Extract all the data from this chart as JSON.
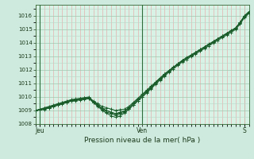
{
  "title": "Pression niveau de la mer( hPa )",
  "bg_color": "#ceeade",
  "plot_bg_color": "#d8f2e6",
  "grid_major_color": "#a0c8b0",
  "grid_minor_x_color": "#e8a0a0",
  "grid_minor_y_color": "#b8d8c8",
  "line_color": "#1a5c2a",
  "ylim": [
    1008.0,
    1016.8
  ],
  "yticks": [
    1008,
    1009,
    1010,
    1011,
    1012,
    1013,
    1014,
    1015,
    1016
  ],
  "day_labels": [
    "Jeu",
    "Ven",
    "S"
  ],
  "day_positions": [
    0.02,
    0.5,
    0.98
  ],
  "vline_x": [
    0.02,
    0.5
  ],
  "n_points": 49,
  "lines": [
    [
      1009.0,
      1009.1,
      1009.2,
      1009.3,
      1009.4,
      1009.5,
      1009.6,
      1009.7,
      1009.8,
      1009.85,
      1009.9,
      1009.95,
      1010.0,
      1009.7,
      1009.5,
      1009.3,
      1009.2,
      1009.1,
      1009.0,
      1009.05,
      1009.1,
      1009.3,
      1009.6,
      1009.9,
      1010.2,
      1010.5,
      1010.8,
      1011.1,
      1011.4,
      1011.7,
      1011.95,
      1012.2,
      1012.45,
      1012.7,
      1012.9,
      1013.1,
      1013.3,
      1013.5,
      1013.7,
      1013.9,
      1014.1,
      1014.3,
      1014.5,
      1014.7,
      1014.9,
      1015.1,
      1015.5,
      1016.0,
      1016.3
    ],
    [
      1009.0,
      1009.05,
      1009.1,
      1009.2,
      1009.3,
      1009.4,
      1009.5,
      1009.6,
      1009.7,
      1009.75,
      1009.8,
      1009.85,
      1009.9,
      1009.6,
      1009.3,
      1009.0,
      1008.8,
      1008.6,
      1008.5,
      1008.6,
      1008.8,
      1009.1,
      1009.4,
      1009.7,
      1010.0,
      1010.35,
      1010.65,
      1011.0,
      1011.3,
      1011.6,
      1011.9,
      1012.15,
      1012.4,
      1012.65,
      1012.85,
      1013.05,
      1013.25,
      1013.45,
      1013.65,
      1013.85,
      1014.05,
      1014.25,
      1014.45,
      1014.65,
      1014.85,
      1015.05,
      1015.45,
      1015.9,
      1016.2
    ],
    [
      1009.0,
      1009.07,
      1009.15,
      1009.25,
      1009.35,
      1009.45,
      1009.55,
      1009.65,
      1009.75,
      1009.8,
      1009.85,
      1009.9,
      1009.95,
      1009.65,
      1009.4,
      1009.15,
      1009.0,
      1008.85,
      1008.75,
      1008.85,
      1008.95,
      1009.2,
      1009.5,
      1009.8,
      1010.1,
      1010.42,
      1010.72,
      1011.05,
      1011.35,
      1011.65,
      1011.92,
      1012.17,
      1012.42,
      1012.67,
      1012.87,
      1013.07,
      1013.27,
      1013.47,
      1013.67,
      1013.87,
      1014.07,
      1014.27,
      1014.47,
      1014.67,
      1014.87,
      1015.07,
      1015.47,
      1015.95,
      1016.25
    ],
    [
      1009.0,
      1009.08,
      1009.16,
      1009.26,
      1009.36,
      1009.46,
      1009.56,
      1009.66,
      1009.76,
      1009.81,
      1009.86,
      1009.91,
      1009.96,
      1009.66,
      1009.41,
      1009.16,
      1009.0,
      1008.87,
      1008.77,
      1008.87,
      1008.97,
      1009.22,
      1009.52,
      1009.82,
      1010.12,
      1010.44,
      1010.74,
      1011.07,
      1011.37,
      1011.67,
      1011.94,
      1012.19,
      1012.44,
      1012.69,
      1012.89,
      1013.09,
      1013.29,
      1013.49,
      1013.69,
      1013.89,
      1014.09,
      1014.29,
      1014.49,
      1014.69,
      1014.89,
      1015.09,
      1015.49,
      1015.97,
      1016.27
    ],
    [
      1009.0,
      1009.03,
      1009.08,
      1009.18,
      1009.28,
      1009.38,
      1009.48,
      1009.58,
      1009.68,
      1009.73,
      1009.78,
      1009.83,
      1009.88,
      1009.58,
      1009.33,
      1009.08,
      1008.9,
      1008.75,
      1008.65,
      1008.75,
      1008.87,
      1009.1,
      1009.4,
      1009.7,
      1010.0,
      1010.3,
      1010.6,
      1010.93,
      1011.23,
      1011.53,
      1011.82,
      1012.07,
      1012.32,
      1012.57,
      1012.77,
      1012.97,
      1013.17,
      1013.37,
      1013.57,
      1013.77,
      1013.97,
      1014.17,
      1014.37,
      1014.57,
      1014.77,
      1014.97,
      1015.37,
      1015.85,
      1016.15
    ]
  ]
}
